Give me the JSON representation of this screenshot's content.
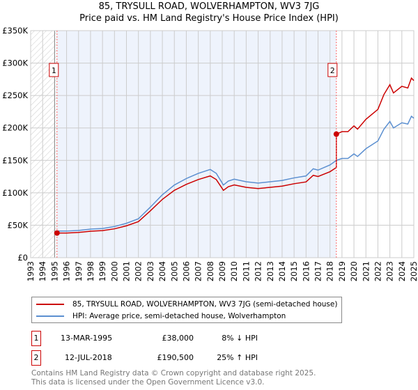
{
  "chart_data": {
    "type": "line",
    "title": "85, TRYSULL ROAD, WOLVERHAMPTON, WV3 7JG",
    "subtitle": "Price paid vs. HM Land Registry's House Price Index (HPI)",
    "xlim": [
      1993,
      2025
    ],
    "ylim": [
      0,
      350000
    ],
    "y_ticks": [
      {
        "v": 0,
        "label": "£0"
      },
      {
        "v": 50000,
        "label": "£50K"
      },
      {
        "v": 100000,
        "label": "£100K"
      },
      {
        "v": 150000,
        "label": "£150K"
      },
      {
        "v": 200000,
        "label": "£200K"
      },
      {
        "v": 250000,
        "label": "£250K"
      },
      {
        "v": 300000,
        "label": "£300K"
      },
      {
        "v": 350000,
        "label": "£350K"
      }
    ],
    "x_ticks": [
      "1993",
      "1994",
      "1995",
      "1996",
      "1997",
      "1998",
      "1999",
      "2000",
      "2001",
      "2002",
      "2003",
      "2004",
      "2005",
      "2006",
      "2007",
      "2008",
      "2009",
      "2010",
      "2011",
      "2012",
      "2013",
      "2014",
      "2015",
      "2016",
      "2017",
      "2018",
      "2019",
      "2020",
      "2021",
      "2022",
      "2023",
      "2024",
      "2025"
    ],
    "hpi": {
      "name": "HPI: Average price, semi-detached house, Wolverhampton",
      "color": "#5b8fd0",
      "x": [
        1995.2,
        1996,
        1997,
        1998,
        1999,
        2000,
        2001,
        2002,
        2003,
        2004,
        2005,
        2006,
        2007,
        2008,
        2008.5,
        2009.1,
        2009.5,
        2010,
        2011,
        2012,
        2013,
        2014,
        2015,
        2016,
        2016.6,
        2017,
        2018,
        2018.53,
        2019,
        2019.5,
        2020,
        2020.3,
        2021,
        2022,
        2022.5,
        2023,
        2023.3,
        2024,
        2024.5,
        2024.8,
        2025
      ],
      "y": [
        41000,
        41000,
        42000,
        44000,
        45000,
        48000,
        53000,
        60000,
        78000,
        97000,
        112000,
        122000,
        130000,
        136000,
        130000,
        112000,
        118000,
        121000,
        117000,
        115000,
        117000,
        119000,
        123000,
        126000,
        137000,
        135000,
        143000,
        150000,
        153000,
        153000,
        160000,
        156000,
        168000,
        180000,
        198000,
        210000,
        200000,
        208000,
        206000,
        218000,
        215000
      ]
    },
    "property": {
      "name": "85, TRYSULL ROAD, WOLVERHAMPTON, WV3 7JG (semi-detached house)",
      "color": "#cc0000"
    },
    "sales": [
      {
        "id": "1",
        "x": 1995.2,
        "date": "13-MAR-1995",
        "price": 38000,
        "price_label": "£38,000",
        "hpi_rel": "8% ↓ HPI"
      },
      {
        "id": "2",
        "x": 2018.53,
        "date": "12-JUL-2018",
        "price": 190500,
        "price_label": "£190,500",
        "hpi_rel": "25% ↑ HPI"
      }
    ],
    "legend_placement": "below"
  },
  "footer": {
    "line1": "Contains HM Land Registry data © Crown copyright and database right 2025.",
    "line2": "This data is licensed under the Open Government Licence v3.0."
  }
}
